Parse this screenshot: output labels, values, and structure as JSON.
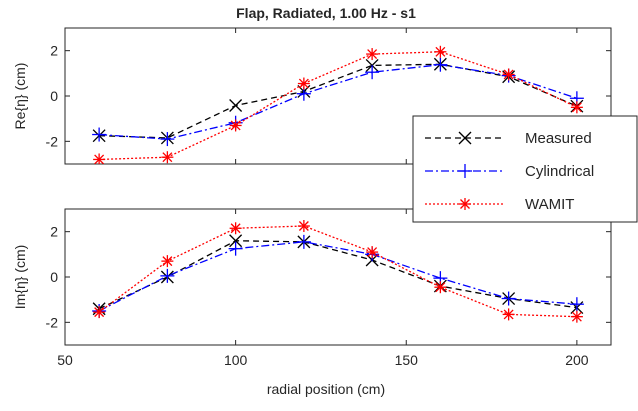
{
  "figure": {
    "title": "Flap, Radiated, 1.00 Hz - s1",
    "xlabel": "radial position (cm)"
  },
  "legend": {
    "entries": [
      {
        "label": "Measured",
        "color": "#000000",
        "marker": "x",
        "dash": "dashed"
      },
      {
        "label": "Cylindrical",
        "color": "#0000ff",
        "marker": "+",
        "dash": "dashdot"
      },
      {
        "label": "WAMIT",
        "color": "#ff0000",
        "marker": "*",
        "dash": "dotted"
      }
    ]
  },
  "chart_data": [
    {
      "type": "line",
      "title": "Flap, Radiated, 1.00 Hz - s1",
      "xlabel": "",
      "ylabel": "Re{η} (cm)",
      "xlim": [
        50,
        210
      ],
      "ylim": [
        -3,
        3
      ],
      "xticks": [
        50,
        100,
        150,
        200
      ],
      "yticks": [
        -2,
        0,
        2
      ],
      "grid": false,
      "legend": "bottom-right",
      "x": [
        60,
        80,
        100,
        120,
        140,
        160,
        180,
        200
      ],
      "series": [
        {
          "name": "Measured",
          "color": "#000000",
          "values": [
            -1.75,
            -1.85,
            -0.42,
            0.2,
            1.35,
            1.4,
            0.85,
            -0.45
          ]
        },
        {
          "name": "Cylindrical",
          "color": "#0000ff",
          "values": [
            -1.7,
            -1.9,
            -1.18,
            0.1,
            1.05,
            1.38,
            0.9,
            -0.1
          ]
        },
        {
          "name": "WAMIT",
          "color": "#ff0000",
          "values": [
            -2.8,
            -2.7,
            -1.3,
            0.55,
            1.85,
            1.95,
            0.95,
            -0.5
          ]
        }
      ]
    },
    {
      "type": "line",
      "xlabel": "radial position (cm)",
      "ylabel": "Im{η} (cm)",
      "xlim": [
        50,
        210
      ],
      "ylim": [
        -3,
        3
      ],
      "xticks": [
        50,
        100,
        150,
        200
      ],
      "yticks": [
        -2,
        0,
        2
      ],
      "grid": false,
      "x": [
        60,
        80,
        100,
        120,
        140,
        160,
        180,
        200
      ],
      "series": [
        {
          "name": "Measured",
          "color": "#000000",
          "values": [
            -1.4,
            0.0,
            1.6,
            1.55,
            0.75,
            -0.4,
            -0.95,
            -1.35
          ]
        },
        {
          "name": "Cylindrical",
          "color": "#0000ff",
          "values": [
            -1.5,
            0.05,
            1.25,
            1.55,
            1.0,
            -0.05,
            -0.95,
            -1.2
          ]
        },
        {
          "name": "WAMIT",
          "color": "#ff0000",
          "values": [
            -1.55,
            0.7,
            2.15,
            2.25,
            1.1,
            -0.45,
            -1.65,
            -1.75
          ]
        }
      ]
    }
  ]
}
